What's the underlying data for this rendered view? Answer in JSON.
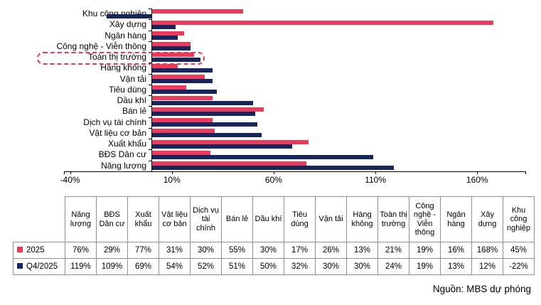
{
  "source_note": "Nguồn: MBS dự phóng",
  "chart_data": {
    "type": "bar",
    "orientation": "horizontal",
    "title": "",
    "unit": "%",
    "categories": [
      "Khu công nghiệp",
      "Xây dựng",
      "Ngân hàng",
      "Công nghệ - Viễn thông",
      "Toàn thị trường",
      "Hàng không",
      "Vận tải",
      "Tiêu dùng",
      "Dầu khí",
      "Bán lẻ",
      "Dịch vụ tài chính",
      "Vật liệu cơ bản",
      "Xuất khẩu",
      "BĐS Dân cư",
      "Năng lượng"
    ],
    "series": [
      {
        "name": "2025",
        "color": "#ed3a5b",
        "values": [
          45,
          168,
          16,
          19,
          21,
          13,
          26,
          17,
          30,
          55,
          30,
          31,
          77,
          29,
          76
        ]
      },
      {
        "name": "Q4/2025",
        "color": "#16265c",
        "values": [
          -22,
          12,
          13,
          19,
          24,
          30,
          30,
          32,
          50,
          51,
          52,
          54,
          69,
          109,
          119
        ]
      }
    ],
    "x_tick_values": [
      -40,
      10,
      60,
      110,
      160
    ],
    "x_tick_labels": [
      "-40%",
      "10%",
      "60%",
      "110%",
      "160%"
    ],
    "axis_range": [
      -43,
      184
    ],
    "gridlines": false,
    "legend_position": "in-table-below",
    "highlighted_category": "Toàn thị trường"
  },
  "table": {
    "corner_label": "",
    "columns": [
      "Năng lượng",
      "BĐS Dân cư",
      "Xuất khẩu",
      "Vật liệu cơ bản",
      "Dịch vụ tài chính",
      "Bán lẻ",
      "Dầu khí",
      "Tiêu dùng",
      "Vận tải",
      "Hàng không",
      "Toàn thị trường",
      "Công nghệ - Viễn thông",
      "Ngân hàng",
      "Xây dựng",
      "Khu công nghiệp"
    ],
    "rows": [
      {
        "label": "2025",
        "legend_color": "#ed3a5b",
        "values": [
          "76%",
          "29%",
          "77%",
          "31%",
          "30%",
          "55%",
          "30%",
          "17%",
          "26%",
          "13%",
          "21%",
          "19%",
          "16%",
          "168%",
          "45%"
        ]
      },
      {
        "label": "Q4/2025",
        "legend_color": "#16265c",
        "values": [
          "119%",
          "109%",
          "69%",
          "54%",
          "52%",
          "51%",
          "50%",
          "32%",
          "30%",
          "30%",
          "24%",
          "19%",
          "13%",
          "12%",
          "-22%"
        ]
      }
    ]
  }
}
